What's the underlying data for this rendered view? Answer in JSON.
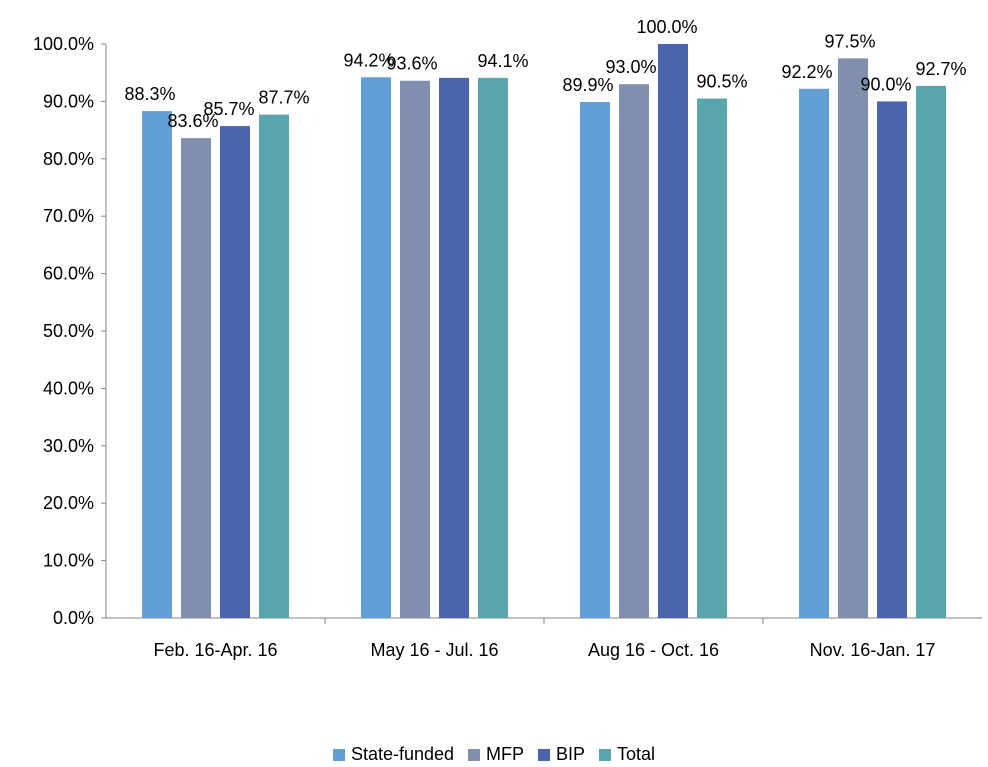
{
  "chart_data": {
    "type": "bar",
    "title": "",
    "xlabel": "",
    "ylabel": "",
    "ylim": [
      0,
      100
    ],
    "yticks": [
      "0.0%",
      "10.0%",
      "20.0%",
      "30.0%",
      "40.0%",
      "50.0%",
      "60.0%",
      "70.0%",
      "80.0%",
      "90.0%",
      "100.0%"
    ],
    "categories": [
      "Feb. 16-Apr. 16",
      "May 16 - Jul. 16",
      "Aug 16 - Oct. 16",
      "Nov. 16-Jan. 17"
    ],
    "series": [
      {
        "name": "State-funded",
        "color": "#629FD4",
        "values": [
          88.3,
          94.2,
          89.9,
          92.2
        ],
        "labels": [
          "88.3%",
          "94.2%",
          "89.9%",
          "92.2%"
        ]
      },
      {
        "name": "MFP",
        "color": "#7F8FAD",
        "values": [
          83.6,
          93.6,
          93.0,
          97.5
        ],
        "labels": [
          "83.6%",
          "93.6%",
          "93.0%",
          "97.5%"
        ]
      },
      {
        "name": "BIP",
        "color": "#4B64AE",
        "values": [
          85.7,
          94.1,
          100.0,
          90.0
        ],
        "labels": [
          "85.7%",
          "",
          "100.0%",
          "90.0%"
        ]
      },
      {
        "name": "Total",
        "color": "#58A5AE",
        "values": [
          87.7,
          94.1,
          90.5,
          92.7
        ],
        "labels": [
          "87.7%",
          "94.1%",
          "90.5%",
          "92.7%"
        ]
      }
    ],
    "grid": false,
    "legend": "bottom"
  }
}
